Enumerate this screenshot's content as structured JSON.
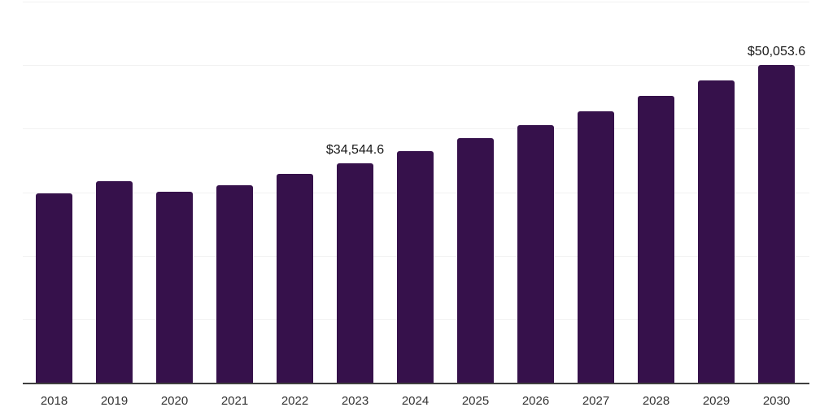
{
  "chart_data": {
    "type": "bar",
    "title": "",
    "xlabel": "",
    "ylabel": "",
    "categories": [
      "2018",
      "2019",
      "2020",
      "2021",
      "2022",
      "2023",
      "2024",
      "2025",
      "2026",
      "2027",
      "2028",
      "2029",
      "2030"
    ],
    "values": [
      29800,
      31700,
      30050,
      31100,
      32850,
      34544.6,
      36500,
      38450,
      40550,
      42700,
      45100,
      47550,
      50053.6
    ],
    "data_labels": [
      "",
      "",
      "",
      "",
      "",
      "$34,544.6",
      "",
      "",
      "",
      "",
      "",
      "",
      "$50,053.6"
    ],
    "ylim": [
      0,
      60000
    ],
    "gridline_step": 10000,
    "grid": true,
    "legend": false,
    "y_axis_labels_visible": false,
    "bar_color": "#36114B",
    "axis_line_color": "#3F3F3F",
    "gridline_color": "#F2F2F2",
    "tick_label_color": "#333333",
    "data_label_color": "#1A1A1A",
    "background_color": "#FFFFFF"
  }
}
